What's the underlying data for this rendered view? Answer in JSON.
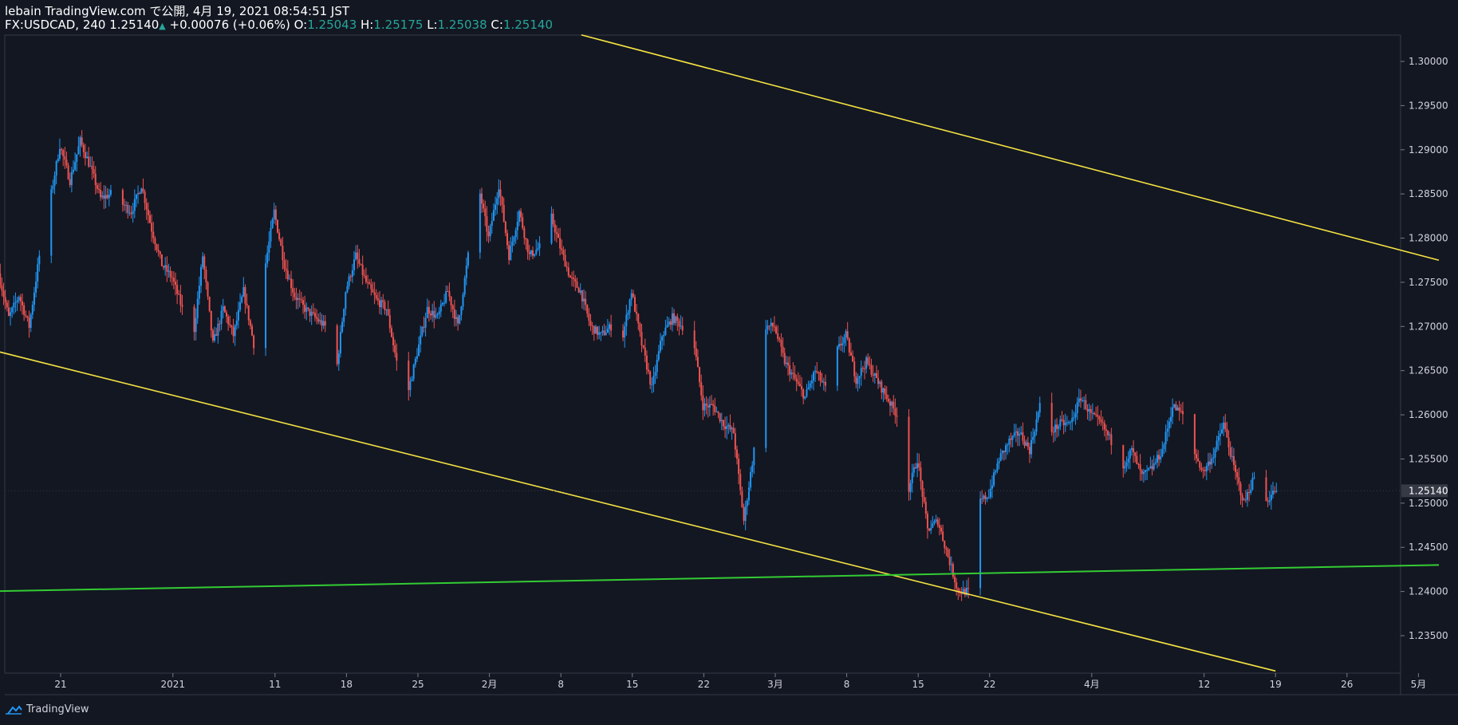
{
  "header": {
    "publish_line": "lebain TradingView.com で公開, 4月 19, 2021 08:54:51 JST",
    "symbol": "FX:USDCAD, 240",
    "last": "1.25140",
    "change_icon": "triangle-up-icon",
    "change": "+0.00076 (+0.06%)",
    "o_label": "O:",
    "o_value": "1.25043",
    "h_label": "H:",
    "h_value": "1.25175",
    "l_label": "L:",
    "l_value": "1.25038",
    "c_label": "C:",
    "c_value": "1.25140"
  },
  "footer": {
    "brand": "TradingView",
    "logo_icon": "tradingview-cloud-icon"
  },
  "colors": {
    "background": "#131722",
    "up_candle": "#2196f3",
    "down_candle": "#ef5350",
    "channel_lines": "#f5e342",
    "support_line": "#33cc33",
    "price_badge": "#363a45"
  },
  "chart_data": {
    "type": "candlestick",
    "symbol": "USDCAD",
    "interval": "240",
    "y_axis": {
      "ylim": [
        1.2315,
        1.3025
      ],
      "ticks": [
        "1.30000",
        "1.29500",
        "1.29000",
        "1.28500",
        "1.28000",
        "1.27500",
        "1.27000",
        "1.26500",
        "1.26000",
        "1.25500",
        "1.25000",
        "1.24500",
        "1.24000",
        "1.23500"
      ]
    },
    "x_axis": {
      "ticks": [
        {
          "label": "21",
          "date": "2020-12-21"
        },
        {
          "label": "2021",
          "date": "2021-01-01"
        },
        {
          "label": "11",
          "date": "2021-01-11"
        },
        {
          "label": "18",
          "date": "2021-01-18"
        },
        {
          "label": "25",
          "date": "2021-01-25"
        },
        {
          "label": "2月",
          "date": "2021-02-01"
        },
        {
          "label": "8",
          "date": "2021-02-08"
        },
        {
          "label": "15",
          "date": "2021-02-15"
        },
        {
          "label": "22",
          "date": "2021-02-22"
        },
        {
          "label": "3月",
          "date": "2021-03-01"
        },
        {
          "label": "8",
          "date": "2021-03-08"
        },
        {
          "label": "15",
          "date": "2021-03-15"
        },
        {
          "label": "22",
          "date": "2021-03-22"
        },
        {
          "label": "4月",
          "date": "2021-04-01"
        },
        {
          "label": "12",
          "date": "2021-04-12"
        },
        {
          "label": "19",
          "date": "2021-04-19"
        },
        {
          "label": "26",
          "date": "2021-04-26"
        },
        {
          "label": "5月",
          "date": "2021-05-03"
        }
      ]
    },
    "price_path": [
      [
        "2020-12-15",
        1.276
      ],
      [
        "2020-12-16",
        1.271
      ],
      [
        "2020-12-17",
        1.2735
      ],
      [
        "2020-12-18",
        1.27
      ],
      [
        "2020-12-19",
        1.278
      ],
      [
        "2020-12-20",
        1.284
      ],
      [
        "2020-12-21",
        1.2905
      ],
      [
        "2020-12-22",
        1.2865
      ],
      [
        "2020-12-23",
        1.291
      ],
      [
        "2020-12-24",
        1.288
      ],
      [
        "2020-12-25",
        1.2845
      ],
      [
        "2020-12-26",
        1.285
      ],
      [
        "2020-12-27",
        1.284
      ],
      [
        "2020-12-28",
        1.283
      ],
      [
        "2020-12-29",
        1.286
      ],
      [
        "2020-12-30",
        1.281
      ],
      [
        "2020-12-31",
        1.277
      ],
      [
        "2021-01-01",
        1.2755
      ],
      [
        "2021-01-02",
        1.272
      ],
      [
        "2021-01-03",
        1.268
      ],
      [
        "2021-01-04",
        1.278
      ],
      [
        "2021-01-05",
        1.268
      ],
      [
        "2021-01-06",
        1.272
      ],
      [
        "2021-01-07",
        1.269
      ],
      [
        "2021-01-08",
        1.274
      ],
      [
        "2021-01-09",
        1.268
      ],
      [
        "2021-01-10",
        1.276
      ],
      [
        "2021-01-11",
        1.283
      ],
      [
        "2021-01-12",
        1.277
      ],
      [
        "2021-01-13",
        1.2735
      ],
      [
        "2021-01-14",
        1.272
      ],
      [
        "2021-01-15",
        1.271
      ],
      [
        "2021-01-16",
        1.27
      ],
      [
        "2021-01-17",
        1.264
      ],
      [
        "2021-01-18",
        1.274
      ],
      [
        "2021-01-19",
        1.278
      ],
      [
        "2021-01-20",
        1.275
      ],
      [
        "2021-01-21",
        1.273
      ],
      [
        "2021-01-22",
        1.272
      ],
      [
        "2021-01-23",
        1.266
      ],
      [
        "2021-01-24",
        1.262
      ],
      [
        "2021-01-25",
        1.267
      ],
      [
        "2021-01-26",
        1.272
      ],
      [
        "2021-01-27",
        1.271
      ],
      [
        "2021-01-28",
        1.274
      ],
      [
        "2021-01-29",
        1.27
      ],
      [
        "2021-01-30",
        1.278
      ],
      [
        "2021-01-31",
        1.286
      ],
      [
        "2021-02-01",
        1.28
      ],
      [
        "2021-02-02",
        1.286
      ],
      [
        "2021-02-03",
        1.278
      ],
      [
        "2021-02-04",
        1.283
      ],
      [
        "2021-02-05",
        1.278
      ],
      [
        "2021-02-06",
        1.279
      ],
      [
        "2021-02-07",
        1.283
      ],
      [
        "2021-02-08",
        1.279
      ],
      [
        "2021-02-09",
        1.2755
      ],
      [
        "2021-02-10",
        1.274
      ],
      [
        "2021-02-11",
        1.27
      ],
      [
        "2021-02-12",
        1.269
      ],
      [
        "2021-02-13",
        1.27
      ],
      [
        "2021-02-14",
        1.268
      ],
      [
        "2021-02-15",
        1.274
      ],
      [
        "2021-02-16",
        1.268
      ],
      [
        "2021-02-17",
        1.263
      ],
      [
        "2021-02-18",
        1.269
      ],
      [
        "2021-02-19",
        1.271
      ],
      [
        "2021-02-20",
        1.27
      ],
      [
        "2021-02-21",
        1.269
      ],
      [
        "2021-02-22",
        1.261
      ],
      [
        "2021-02-23",
        1.261
      ],
      [
        "2021-02-24",
        1.259
      ],
      [
        "2021-02-25",
        1.258
      ],
      [
        "2021-02-26",
        1.248
      ],
      [
        "2021-02-27",
        1.256
      ],
      [
        "2021-02-28",
        1.27
      ],
      [
        "2021-03-01",
        1.27
      ],
      [
        "2021-03-02",
        1.266
      ],
      [
        "2021-03-03",
        1.264
      ],
      [
        "2021-03-04",
        1.262
      ],
      [
        "2021-03-05",
        1.265
      ],
      [
        "2021-03-06",
        1.263
      ],
      [
        "2021-03-07",
        1.267
      ],
      [
        "2021-03-08",
        1.269
      ],
      [
        "2021-03-09",
        1.264
      ],
      [
        "2021-03-10",
        1.266
      ],
      [
        "2021-03-11",
        1.264
      ],
      [
        "2021-03-12",
        1.262
      ],
      [
        "2021-03-13",
        1.26
      ],
      [
        "2021-03-14",
        1.251
      ],
      [
        "2021-03-15",
        1.255
      ],
      [
        "2021-03-16",
        1.247
      ],
      [
        "2021-03-17",
        1.248
      ],
      [
        "2021-03-18",
        1.244
      ],
      [
        "2021-03-19",
        1.24
      ],
      [
        "2021-03-20",
        1.24
      ],
      [
        "2021-03-21",
        1.25
      ],
      [
        "2021-03-22",
        1.251
      ],
      [
        "2021-03-23",
        1.255
      ],
      [
        "2021-03-24",
        1.257
      ],
      [
        "2021-03-25",
        1.258
      ],
      [
        "2021-03-26",
        1.256
      ],
      [
        "2021-03-27",
        1.261
      ],
      [
        "2021-03-28",
        1.258
      ],
      [
        "2021-03-29",
        1.259
      ],
      [
        "2021-03-30",
        1.259
      ],
      [
        "2021-03-31",
        1.262
      ],
      [
        "2021-04-01",
        1.26
      ],
      [
        "2021-04-02",
        1.259
      ],
      [
        "2021-04-03",
        1.257
      ],
      [
        "2021-04-04",
        1.254
      ],
      [
        "2021-04-05",
        1.256
      ],
      [
        "2021-04-06",
        1.253
      ],
      [
        "2021-04-07",
        1.254
      ],
      [
        "2021-04-08",
        1.256
      ],
      [
        "2021-04-09",
        1.261
      ],
      [
        "2021-04-10",
        1.26
      ],
      [
        "2021-04-11",
        1.256
      ],
      [
        "2021-04-12",
        1.2535
      ],
      [
        "2021-04-13",
        1.2555
      ],
      [
        "2021-04-14",
        1.259
      ],
      [
        "2021-04-15",
        1.254
      ],
      [
        "2021-04-16",
        1.25
      ],
      [
        "2021-04-17",
        1.253
      ],
      [
        "2021-04-18",
        1.25
      ],
      [
        "2021-04-19",
        1.2514
      ]
    ],
    "current_price": "1.25140",
    "trendlines": [
      {
        "kind": "channel-upper",
        "color": "#f5e342",
        "from": [
          "2021-02-10",
          1.303
        ],
        "to": [
          "2021-05-05",
          1.2775
        ]
      },
      {
        "kind": "channel-lower",
        "color": "#f5e342",
        "from": [
          "2020-12-13",
          1.2677
        ],
        "to": [
          "2021-04-19",
          1.231
        ]
      },
      {
        "kind": "support",
        "color": "#33cc33",
        "from": [
          "2020-12-13",
          1.24
        ],
        "to": [
          "2021-05-05",
          1.243
        ]
      }
    ],
    "grid": false,
    "legend": "none"
  }
}
